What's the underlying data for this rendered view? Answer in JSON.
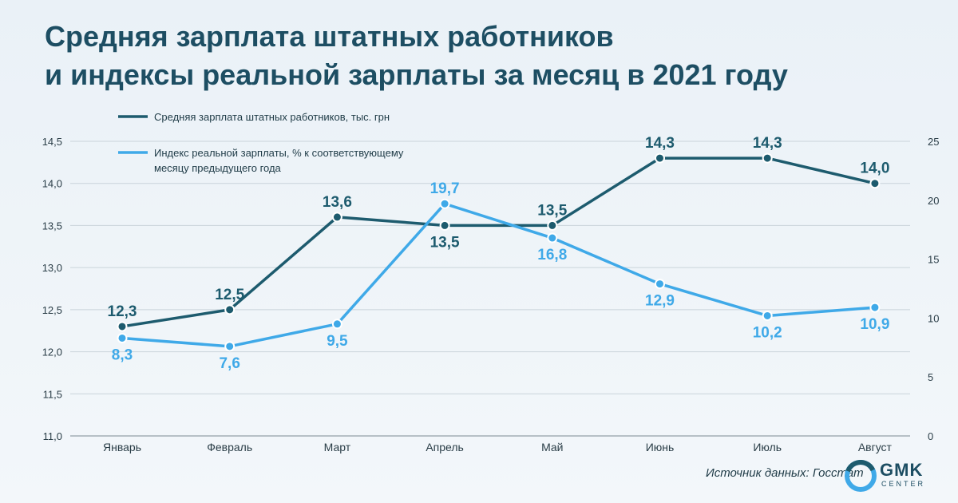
{
  "title_lines": [
    "Средняя зарплата штатных работников",
    "и индексы реальной зарплаты  за месяц в 2021 году"
  ],
  "source": "Источник данных: Госстат",
  "logo": {
    "text": "GMK",
    "subtext": "CENTER",
    "icon": "gmk-circle-logo-icon"
  },
  "chart_data": {
    "type": "line",
    "categories": [
      "Январь",
      "Февраль",
      "Март",
      "Апрель",
      "Май",
      "Июнь",
      "Июль",
      "Август"
    ],
    "y_left": {
      "min": 11.0,
      "max": 14.5,
      "ticks": [
        "11,0",
        "11,5",
        "12,0",
        "12,5",
        "13,0",
        "13,5",
        "14,0",
        "14,5"
      ]
    },
    "y_right": {
      "min": 0,
      "max": 25,
      "ticks": [
        "0",
        "5",
        "10",
        "15",
        "20",
        "25"
      ]
    },
    "grid": "horizontal",
    "legend_position": "top-left",
    "series": [
      {
        "name": "Средняя зарплата штатных работников, тыс. грн",
        "axis": "left",
        "color": "#1d5b6e",
        "values": [
          12.3,
          12.5,
          13.6,
          13.5,
          13.5,
          14.3,
          14.3,
          14.0
        ],
        "labels": [
          "12,3",
          "12,5",
          "13,6",
          "13,5",
          "13,5",
          "14,3",
          "14,3",
          "14,0"
        ],
        "label_pos": [
          "above",
          "above",
          "above",
          "below",
          "above",
          "above",
          "above",
          "above"
        ]
      },
      {
        "name": "Индекс реальной зарплаты, % к соответствующему месяцу предыдущего года",
        "name_lines": [
          "Индекс реальной зарплаты, % к соответствующему",
          "месяцу предыдущего года"
        ],
        "axis": "right",
        "color": "#3fa9e8",
        "values": [
          8.3,
          7.6,
          9.5,
          19.7,
          16.8,
          12.9,
          10.2,
          10.9
        ],
        "labels": [
          "8,3",
          "7,6",
          "9,5",
          "19,7",
          "16,8",
          "12,9",
          "10,2",
          "10,9"
        ],
        "label_pos": [
          "below",
          "below",
          "below",
          "above",
          "below",
          "below",
          "below",
          "below"
        ]
      }
    ]
  }
}
